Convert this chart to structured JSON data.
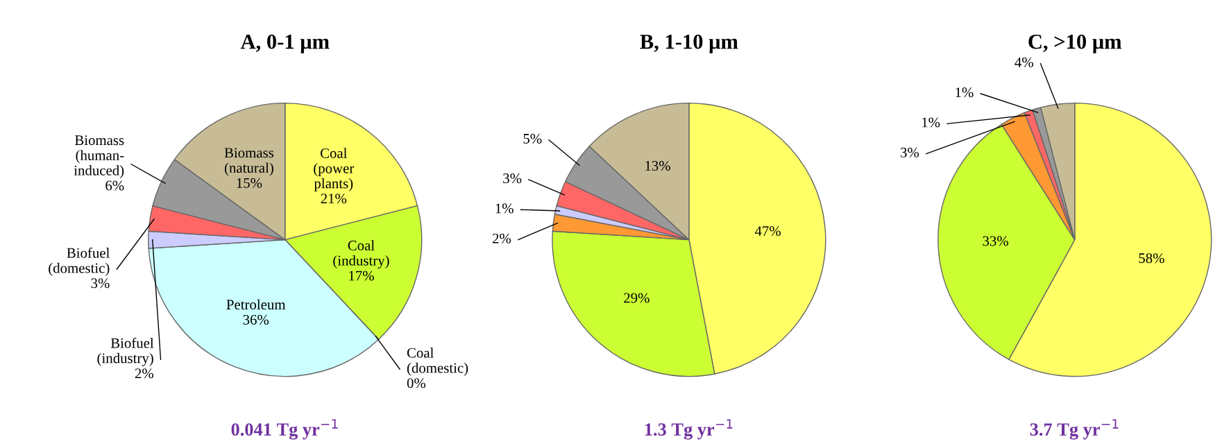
{
  "chart_data": [
    {
      "type": "pie",
      "title": "A, 0-1 μm",
      "categories": [
        "Coal\n(power\nplants)",
        "Coal\n(industry)",
        "Coal\n(domestic)",
        "Petroleum",
        "Biofuel\n(industry)",
        "Biofuel\n(domestic)",
        "Biomass\n(human-\ninduced)",
        "Biomass\n(natural)"
      ],
      "values": [
        21,
        17,
        0,
        36,
        2,
        3,
        6,
        15
      ],
      "colors": [
        "#ffff66",
        "#ccff33",
        "#ff9933",
        "#ccffff",
        "#ccccff",
        "#ff6666",
        "#999999",
        "#c8bc96"
      ],
      "value_labels": [
        "21%",
        "17%",
        "0%",
        "36%",
        "2%",
        "3%",
        "6%",
        "15%"
      ],
      "annotations": [
        "0.041 Tg yr$^{−1}$"
      ]
    },
    {
      "type": "pie",
      "title": "B, 1-10 μm",
      "categories": [
        null,
        null,
        null,
        null,
        null,
        null,
        null
      ],
      "values": [
        47,
        29,
        2,
        1,
        3,
        5,
        13
      ],
      "colors": [
        "#ffff66",
        "#ccff33",
        "#ff9933",
        "#ccccff",
        "#ff6666",
        "#999999",
        "#c8bc96"
      ],
      "value_labels": [
        "47%",
        "29%",
        "2%",
        "1%",
        "3%",
        "5%",
        "13%"
      ],
      "annotations": [
        "1.3 Tg yr$^{−1}$"
      ]
    },
    {
      "type": "pie",
      "title": "C, >10 μm",
      "categories": [
        null,
        null,
        null,
        null,
        null,
        null
      ],
      "values": [
        58,
        33,
        3,
        1,
        1,
        4
      ],
      "colors": [
        "#ffff66",
        "#ccff33",
        "#ff9933",
        "#ff6666",
        "#999999",
        "#c8bc96"
      ],
      "value_labels": [
        "58%",
        "33%",
        "3%",
        "1%",
        "1%",
        "4%"
      ],
      "annotations": [
        "3.7 Tg yr$^{−1}$"
      ]
    }
  ]
}
